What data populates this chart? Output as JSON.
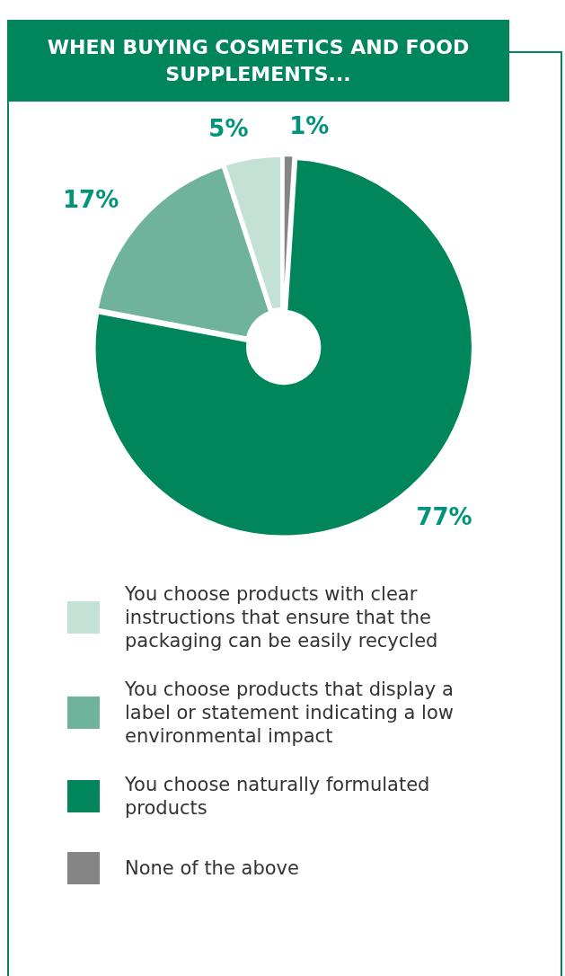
{
  "chart_data": {
    "type": "donut",
    "title": "WHEN BUYING COSMETICS AND FOOD SUPPLEMENTS...",
    "categories": [
      "You choose products with clear instructions that ensure that the packaging can be easily recycled",
      "You choose products that display a label or statement indicating a low environmental impact",
      "You choose naturally formulated products",
      "None of the above"
    ],
    "values": [
      5,
      17,
      77,
      1
    ],
    "colors": [
      "#c3e1d5",
      "#6fb39d",
      "#00865a",
      "#858585"
    ],
    "value_labels": [
      "5%",
      "17%",
      "77%",
      "1%"
    ],
    "legend": "bottom"
  }
}
